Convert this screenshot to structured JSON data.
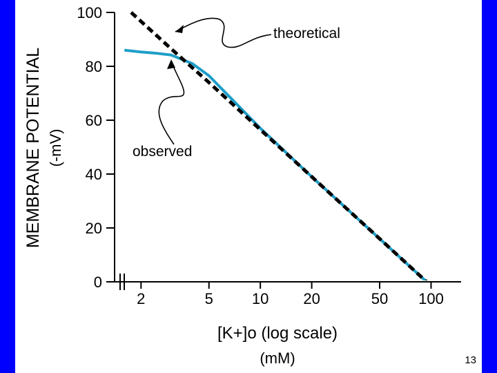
{
  "chart_data": {
    "type": "line",
    "x_scale": "log",
    "xlabel": "[K+]o (log scale)",
    "xunit": "(mM)",
    "ylabel": "MEMBRANE POTENTIAL",
    "yunit": "(-mV)",
    "xticks": [
      2,
      5,
      10,
      20,
      50,
      100
    ],
    "yticks": [
      0,
      20,
      40,
      60,
      80,
      100
    ],
    "xlim": [
      1.4,
      150
    ],
    "ylim": [
      0,
      100
    ],
    "axis_break": true,
    "series": [
      {
        "name": "theoretical",
        "style": "dashed",
        "color": "#000000",
        "x": [
          1.75,
          3,
          5,
          10,
          20,
          50,
          100,
          140
        ],
        "y": [
          100,
          86.5,
          74,
          56.5,
          39,
          16,
          -1.5,
          -9
        ]
      },
      {
        "name": "observed",
        "style": "solid",
        "color": "#1e9ec8",
        "x": [
          1.6,
          2,
          2.5,
          3,
          4,
          5,
          7,
          10,
          20,
          50,
          100,
          140
        ],
        "y": [
          86,
          85.3,
          84.8,
          84.2,
          81,
          76.5,
          67,
          57,
          39,
          16,
          -1.5,
          -9
        ]
      }
    ],
    "annotations": [
      {
        "text": "theoretical",
        "target_series": "theoretical"
      },
      {
        "text": "observed",
        "target_series": "observed"
      }
    ]
  },
  "page_number": "13"
}
